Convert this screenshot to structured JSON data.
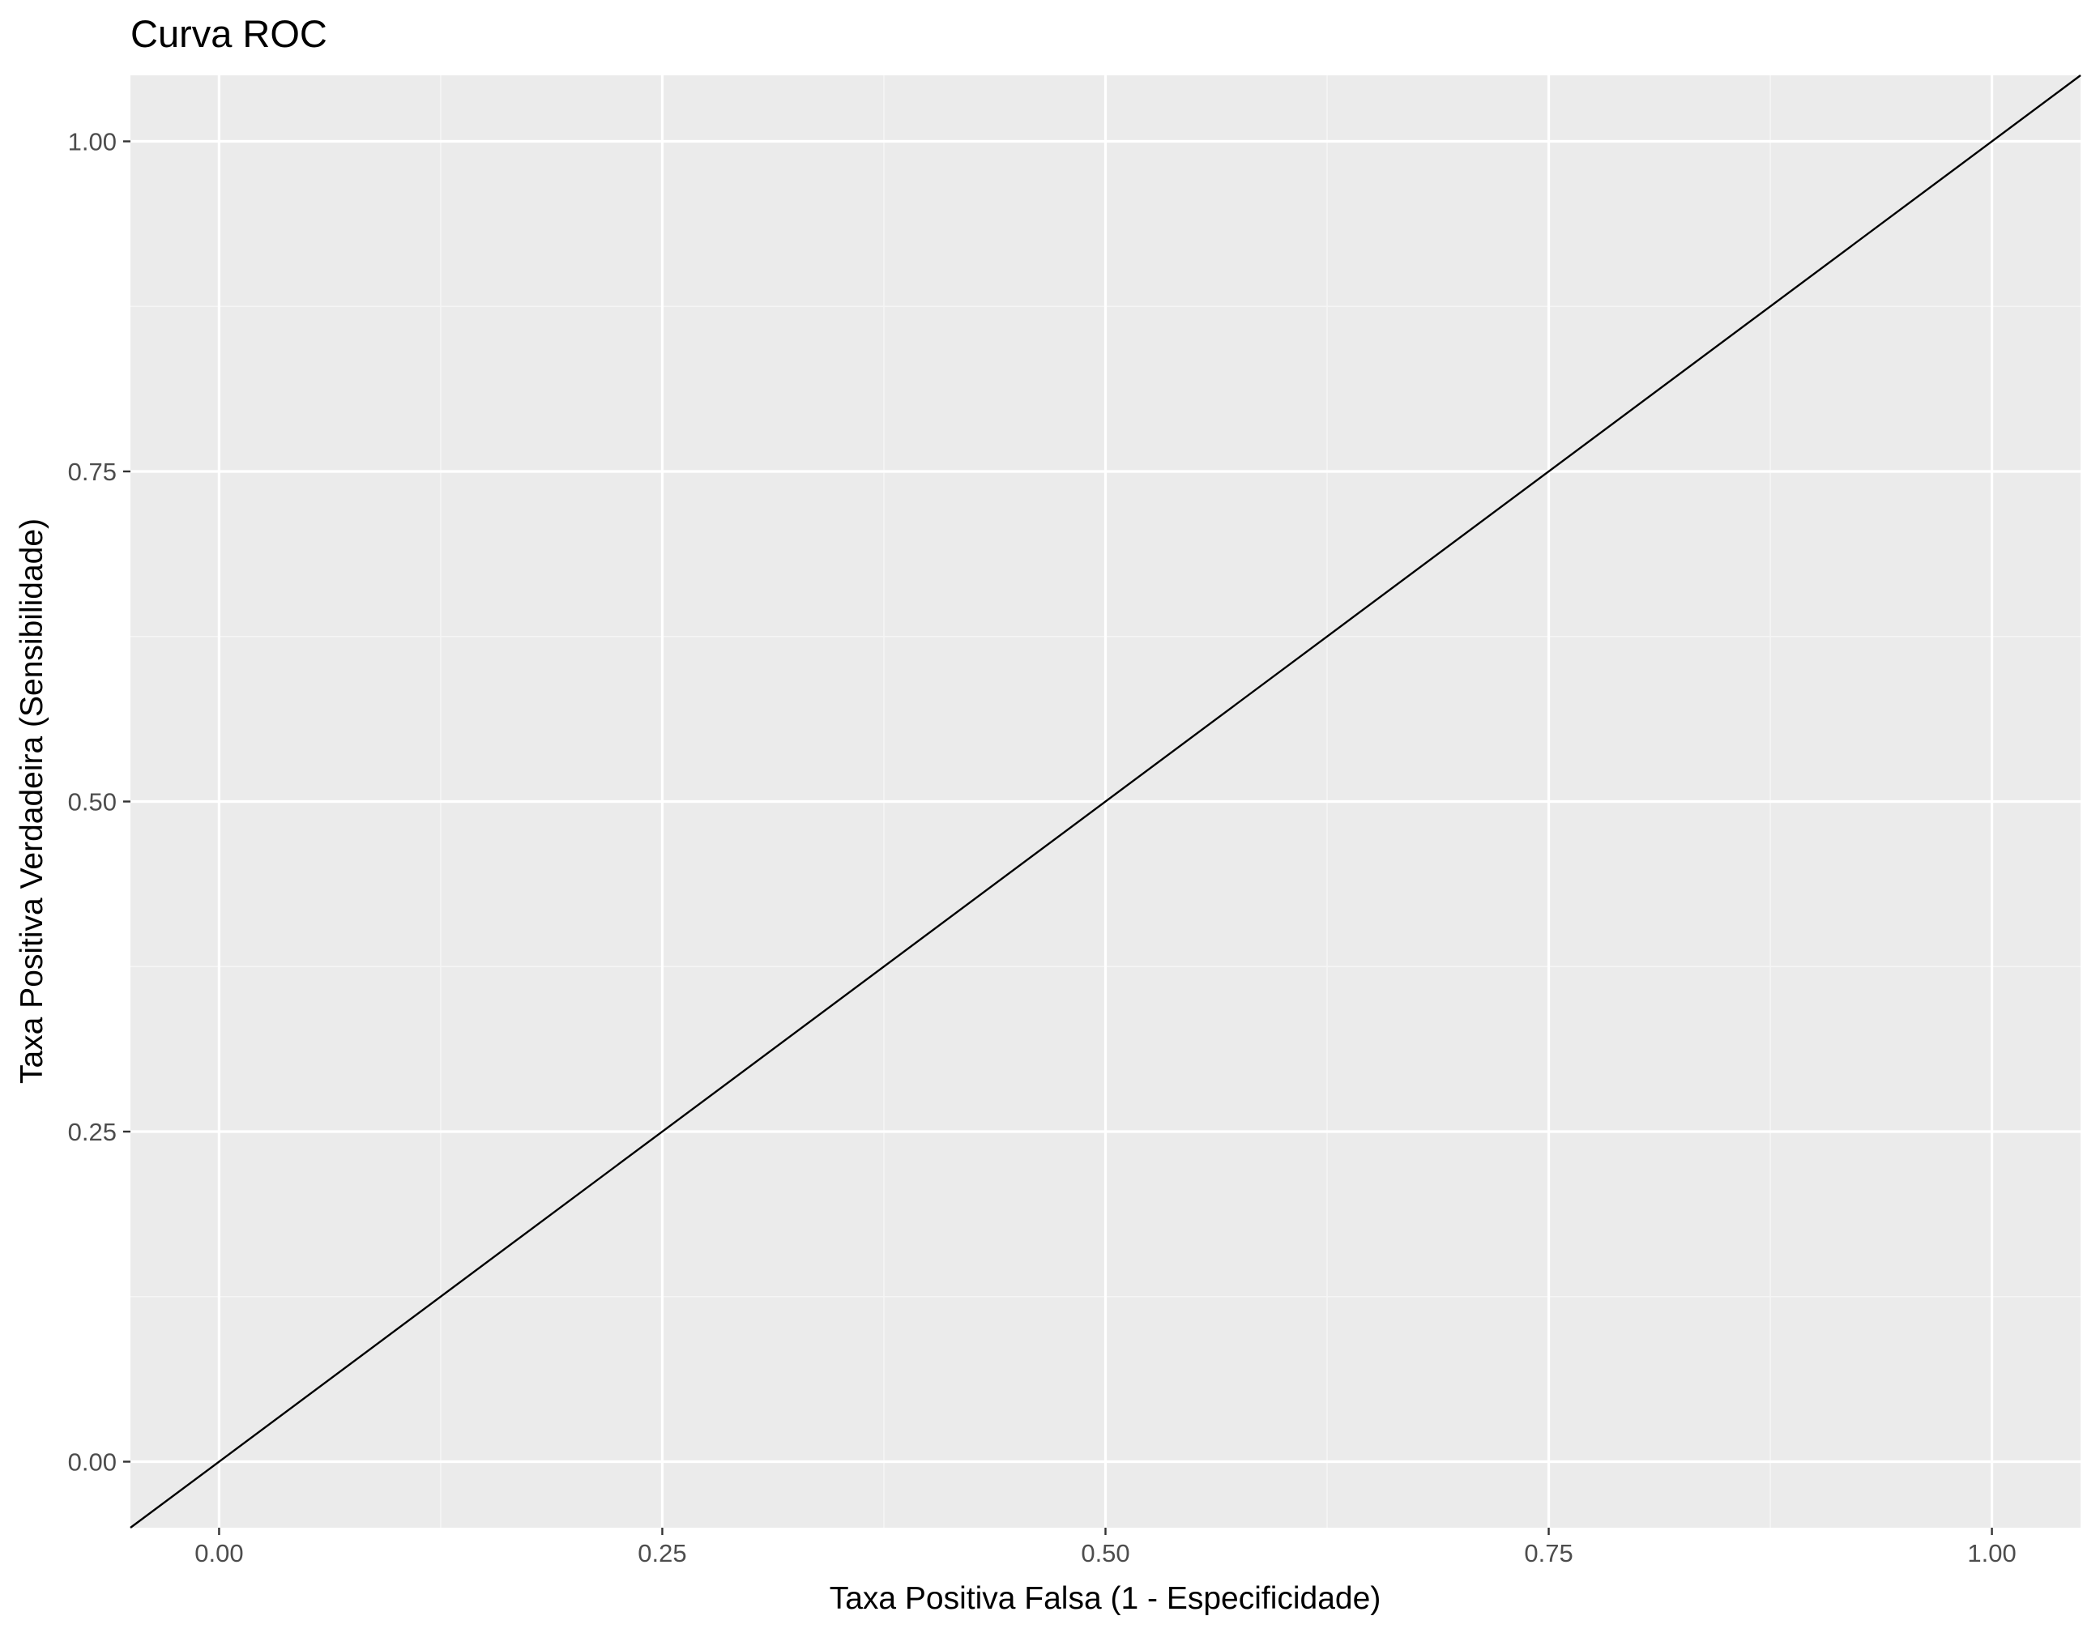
{
  "chart_data": {
    "type": "line",
    "title": "Curva ROC",
    "xlabel": "Taxa Positiva Falsa (1 - Especificidade)",
    "ylabel": "Taxa Positiva Verdadeira (Sensibilidade)",
    "xlim": [
      -0.05,
      1.05
    ],
    "ylim": [
      -0.05,
      1.05
    ],
    "x_ticks": [
      0.0,
      0.25,
      0.5,
      0.75,
      1.0
    ],
    "x_tick_labels": [
      "0.00",
      "0.25",
      "0.50",
      "0.75",
      "1.00"
    ],
    "y_ticks": [
      0.0,
      0.25,
      0.5,
      0.75,
      1.0
    ],
    "y_tick_labels": [
      "0.00",
      "0.25",
      "0.50",
      "0.75",
      "1.00"
    ],
    "grid": true,
    "legend": "none",
    "series": [
      {
        "x": [
          -0.05,
          1.05
        ],
        "y": [
          -0.05,
          1.05
        ]
      }
    ],
    "colors": {
      "panel_background": "#ebebeb",
      "grid_major": "#ffffff",
      "grid_minor": "#f5f5f5",
      "line": "#000000",
      "tick_text": "#4d4d4d"
    }
  }
}
